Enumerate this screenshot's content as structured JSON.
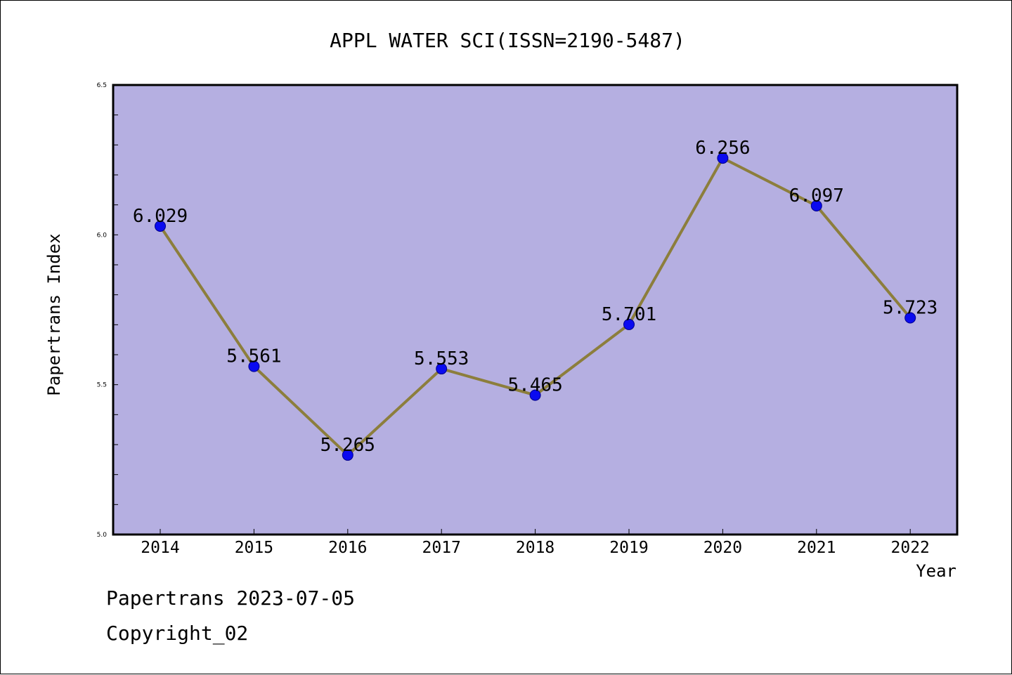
{
  "colors": {
    "plot_background": "#b5afe1",
    "line": "#8c7e3c",
    "marker": "#0a0af0",
    "marker_edge": "#00008b"
  },
  "footer": {
    "date_line": "Papertrans 2023-07-05",
    "copyright_line": "Copyright_02"
  },
  "chart_data": {
    "type": "line",
    "title": "APPL WATER SCI(ISSN=2190-5487)",
    "xlabel": "Year",
    "ylabel": "Papertrans Index",
    "categories": [
      "2014",
      "2015",
      "2016",
      "2017",
      "2018",
      "2019",
      "2020",
      "2021",
      "2022"
    ],
    "series": [
      {
        "values": [
          6.029,
          5.561,
          5.265,
          5.553,
          5.465,
          5.701,
          6.256,
          6.097,
          5.723
        ],
        "data_labels": [
          "6.029",
          "5.561",
          "5.265",
          "5.553",
          "5.465",
          "5.701",
          "6.256",
          "6.097",
          "5.723"
        ]
      }
    ],
    "ylim": [
      5.0,
      6.5
    ],
    "y_major_ticks": [
      "5.0",
      "5.5",
      "6.0",
      "6.5"
    ],
    "grid": false,
    "legend": "none"
  }
}
